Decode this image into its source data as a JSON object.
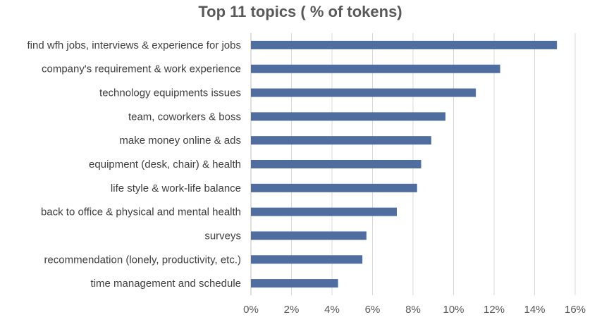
{
  "chart_data": {
    "type": "bar",
    "orientation": "horizontal",
    "title": "Top 11 topics ( % of tokens)",
    "categories": [
      "find wfh jobs, interviews & experience for jobs",
      "company's requirement & work experience",
      "technology equipments issues",
      "team, coworkers & boss",
      "make money online & ads",
      "equipment (desk, chair) & health",
      "life style & work-life balance",
      "back to office & physical and mental health",
      "surveys",
      "recommendation (lonely, productivity, etc.)",
      "time management and schedule"
    ],
    "values": [
      15.1,
      12.3,
      11.1,
      9.6,
      8.9,
      8.4,
      8.2,
      7.2,
      5.7,
      5.5,
      4.3
    ],
    "xlim": [
      0,
      16
    ],
    "xticks": [
      0,
      2,
      4,
      6,
      8,
      10,
      12,
      14,
      16
    ],
    "xtick_labels": [
      "0%",
      "2%",
      "4%",
      "6%",
      "8%",
      "10%",
      "12%",
      "14%",
      "16%"
    ],
    "grid": "vertical",
    "bar_color": "#4f6d9e",
    "legend": "none"
  }
}
